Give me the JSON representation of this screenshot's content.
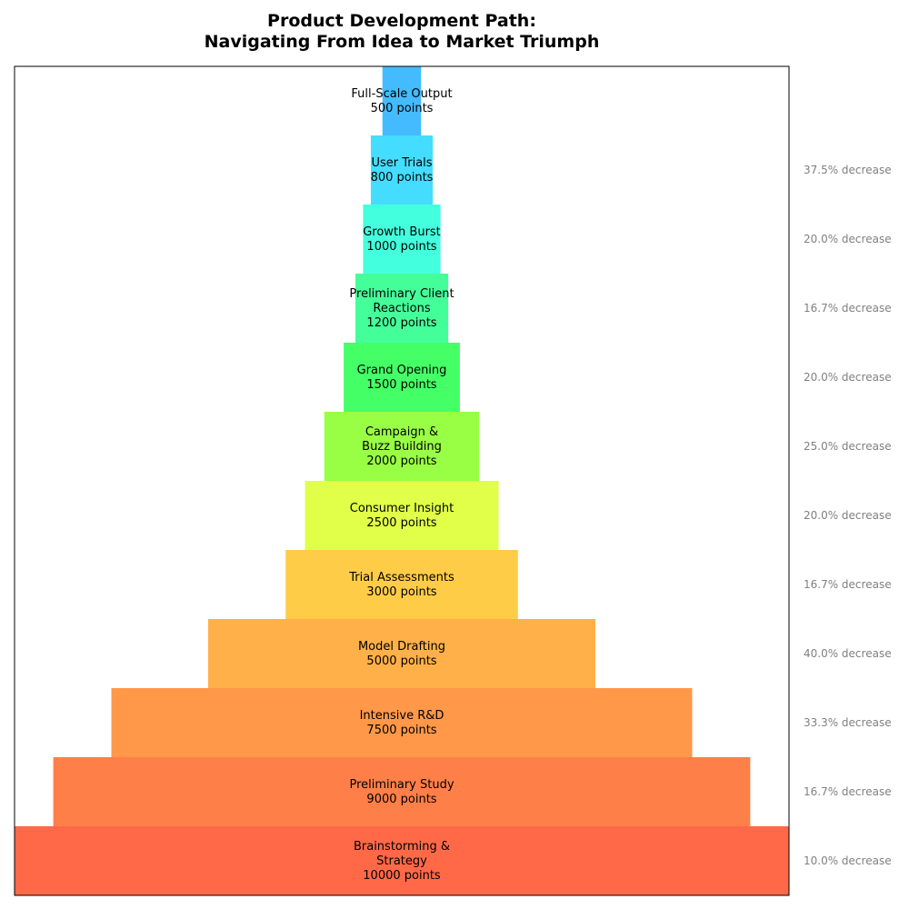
{
  "chart_data": {
    "type": "funnel",
    "title": "Product Development Path:\nNavigating From Idea to Market Triumph",
    "value_suffix": "points",
    "colors": {
      "frame": "#000000",
      "decrease_text": "#808080"
    },
    "stages": [
      {
        "label": "Full-Scale Output",
        "value": 500,
        "color": "#44bbff",
        "decrease": ""
      },
      {
        "label": "User Trials",
        "value": 800,
        "color": "#44ddff",
        "decrease": "37.5% decrease"
      },
      {
        "label": "Growth Burst",
        "value": 1000,
        "color": "#44ffdd",
        "decrease": "20.0% decrease"
      },
      {
        "label": "Preliminary Client\nReactions",
        "value": 1200,
        "color": "#44ff99",
        "decrease": "16.7% decrease"
      },
      {
        "label": "Grand Opening",
        "value": 1500,
        "color": "#44ff66",
        "decrease": "20.0% decrease"
      },
      {
        "label": "Campaign &\nBuzz Building",
        "value": 2000,
        "color": "#99ff44",
        "decrease": "25.0% decrease"
      },
      {
        "label": "Consumer Insight",
        "value": 2500,
        "color": "#e1ff48",
        "decrease": "20.0% decrease"
      },
      {
        "label": "Trial Assessments",
        "value": 3000,
        "color": "#ffcc48",
        "decrease": "16.7% decrease"
      },
      {
        "label": "Model Drafting",
        "value": 5000,
        "color": "#ffb048",
        "decrease": "40.0% decrease"
      },
      {
        "label": "Intensive R&D",
        "value": 7500,
        "color": "#ff9848",
        "decrease": "33.3% decrease"
      },
      {
        "label": "Preliminary Study",
        "value": 9000,
        "color": "#ff7f48",
        "decrease": "16.7% decrease"
      },
      {
        "label": "Brainstorming &\nStrategy",
        "value": 10000,
        "color": "#ff6948",
        "decrease": "10.0% decrease"
      }
    ]
  }
}
